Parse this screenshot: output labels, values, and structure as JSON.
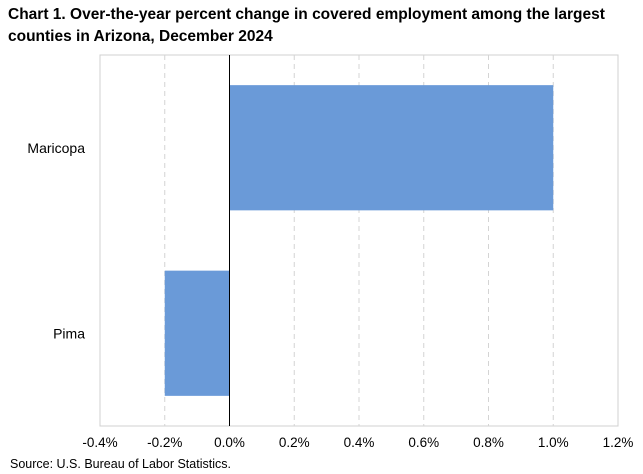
{
  "chart_data": {
    "type": "bar",
    "orientation": "horizontal",
    "title": "Chart 1. Over-the-year percent change in covered employment among the largest counties in Arizona, December 2024",
    "categories": [
      "Maricopa",
      "Pima"
    ],
    "values": [
      1.0,
      -0.2
    ],
    "unit": "percent",
    "xlim": [
      -0.4,
      1.2
    ],
    "xticks": [
      -0.4,
      -0.2,
      0.0,
      0.2,
      0.4,
      0.6,
      0.8,
      1.0,
      1.2
    ],
    "xtick_labels": [
      "-0.4%",
      "-0.2%",
      "0.0%",
      "0.2%",
      "0.4%",
      "0.6%",
      "0.8%",
      "1.0%",
      "1.2%"
    ],
    "grid": "vertical dashed",
    "legend": "none",
    "bar_color": "#6a9ad8",
    "source": "Source: U.S. Bureau of Labor Statistics."
  }
}
